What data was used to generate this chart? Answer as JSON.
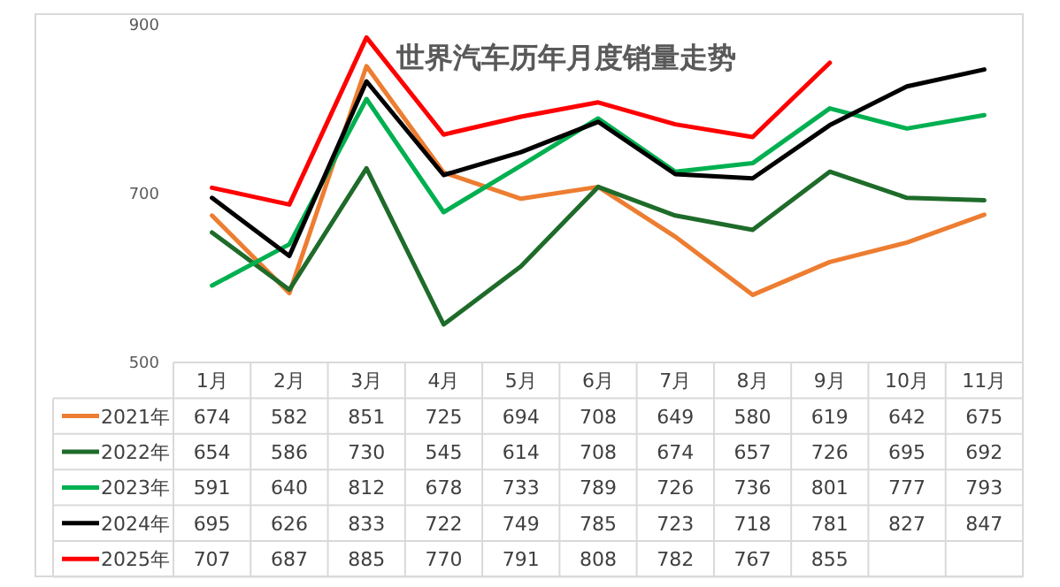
{
  "chart_data": {
    "type": "line",
    "title": "世界汽车历年月度销量走势",
    "categories": [
      "1月",
      "2月",
      "3月",
      "4月",
      "5月",
      "6月",
      "7月",
      "8月",
      "9月",
      "10月",
      "11月"
    ],
    "series": [
      {
        "name": "2021年",
        "color": "#ed7d31",
        "values": [
          674,
          582,
          851,
          725,
          694,
          708,
          649,
          580,
          619,
          642,
          675
        ]
      },
      {
        "name": "2022年",
        "color": "#1e6b2a",
        "values": [
          654,
          586,
          730,
          545,
          614,
          708,
          674,
          657,
          726,
          695,
          692
        ]
      },
      {
        "name": "2023年",
        "color": "#00b050",
        "values": [
          591,
          640,
          812,
          678,
          733,
          789,
          726,
          736,
          801,
          777,
          793
        ]
      },
      {
        "name": "2024年",
        "color": "#000000",
        "values": [
          695,
          626,
          833,
          722,
          749,
          785,
          723,
          718,
          781,
          827,
          847
        ]
      },
      {
        "name": "2025年",
        "color": "#ff0000",
        "values": [
          707,
          687,
          885,
          770,
          791,
          808,
          782,
          767,
          855,
          null,
          null
        ]
      }
    ],
    "ylim": [
      500,
      900
    ],
    "yticks": [
      500,
      700,
      900
    ],
    "grid": false,
    "legend": "bottom left",
    "data_labels": true,
    "marker": "none",
    "line_style": "solid"
  }
}
